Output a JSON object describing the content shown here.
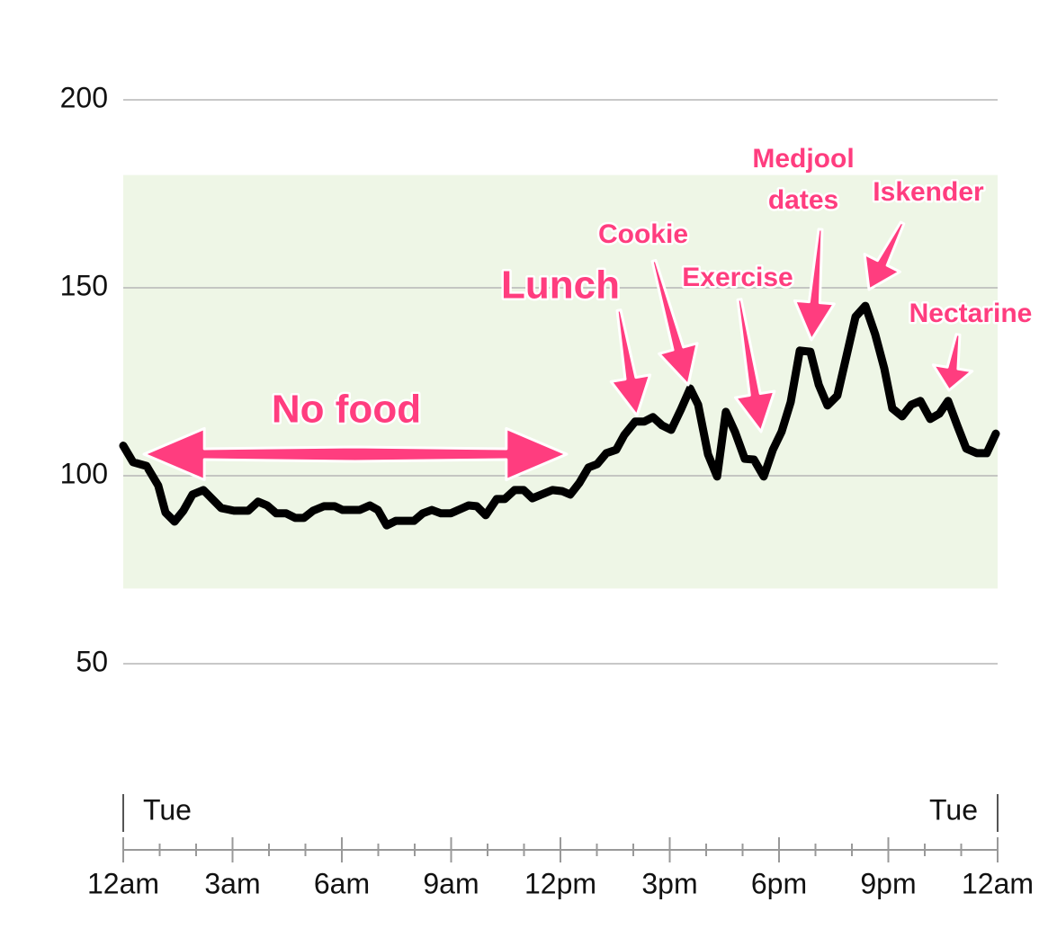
{
  "chart_data": {
    "type": "line",
    "x": [
      0,
      0.27,
      0.64,
      0.96,
      1.16,
      1.41,
      1.65,
      1.9,
      2.2,
      2.69,
      3.04,
      3.43,
      3.7,
      3.95,
      4.2,
      4.47,
      4.72,
      4.96,
      5.21,
      5.51,
      5.8,
      6.02,
      6.49,
      6.77,
      6.99,
      7.23,
      7.48,
      7.98,
      8.22,
      8.47,
      8.72,
      8.99,
      9.48,
      9.7,
      9.95,
      10.25,
      10.47,
      10.74,
      10.99,
      11.23,
      11.48,
      11.78,
      12.05,
      12.27,
      12.52,
      12.77,
      13.01,
      13.26,
      13.53,
      13.75,
      14.05,
      14.3,
      14.54,
      14.79,
      15.04,
      15.31,
      15.56,
      15.78,
      16.05,
      16.3,
      16.54,
      16.79,
      17.06,
      17.31,
      17.58,
      17.83,
      18.07,
      18.32,
      18.57,
      18.86,
      19.09,
      19.33,
      19.6,
      19.85,
      20.1,
      20.37,
      20.64,
      20.89,
      21.11,
      21.38,
      21.63,
      21.88,
      22.15,
      22.4,
      22.64,
      22.89,
      23.14,
      23.43,
      23.7,
      23.95
    ],
    "series": [
      {
        "color": "#000000",
        "values": [
          108,
          103.6,
          102.6,
          97.4,
          90.2,
          87.8,
          90.7,
          95,
          96.2,
          91.4,
          90.7,
          90.7,
          93.1,
          92.1,
          90,
          90,
          88.8,
          88.8,
          90.7,
          91.9,
          91.9,
          90.9,
          90.9,
          92.1,
          90.9,
          86.8,
          88,
          88,
          90,
          90.9,
          90,
          90,
          92.1,
          91.9,
          89.5,
          93.8,
          93.8,
          96.2,
          96.2,
          94,
          95,
          96.2,
          95.9,
          95,
          98.1,
          102.2,
          103.1,
          106,
          106.9,
          110.8,
          114.4,
          114.4,
          115.6,
          113.4,
          112.2,
          117.7,
          123.2,
          118.9,
          105.7,
          99.8,
          117,
          111.7,
          104.5,
          104.3,
          99.8,
          106.9,
          111.7,
          119.6,
          133.3,
          133,
          124.2,
          118.7,
          121.3,
          131.8,
          142.3,
          145.2,
          137.6,
          128.5,
          117.9,
          115.8,
          118.9,
          119.9,
          115.1,
          116.5,
          119.9,
          113.4,
          107.2,
          106,
          106,
          111.2
        ]
      }
    ],
    "xlim": [
      0,
      24
    ],
    "xticks": [
      {
        "value": 0,
        "label": "12am"
      },
      {
        "value": 3,
        "label": "3am"
      },
      {
        "value": 6,
        "label": "6am"
      },
      {
        "value": 9,
        "label": "9am"
      },
      {
        "value": 12,
        "label": "12pm"
      },
      {
        "value": 15,
        "label": "3pm"
      },
      {
        "value": 18,
        "label": "6pm"
      },
      {
        "value": 21,
        "label": "9pm"
      },
      {
        "value": 24,
        "label": "12am"
      }
    ],
    "xminorticks": [
      1,
      2,
      4,
      5,
      7,
      8,
      10,
      11,
      13,
      14,
      16,
      17,
      19,
      20,
      22,
      23
    ],
    "day_labels": [
      {
        "value": 0,
        "label": "Tue"
      },
      {
        "value": 24,
        "label": "Tue"
      }
    ],
    "ylim": [
      40,
      210
    ],
    "yticks": [
      50,
      100,
      150,
      200
    ],
    "grid": true,
    "target_range": [
      70,
      180
    ],
    "target_color": "#eef6e6",
    "annotations": [
      "No food",
      "Lunch",
      "Cookie",
      "Exercise",
      "Medjool",
      "dates",
      "Iskender",
      "Nectarine"
    ],
    "annotation_color": "#ff3d7f"
  }
}
